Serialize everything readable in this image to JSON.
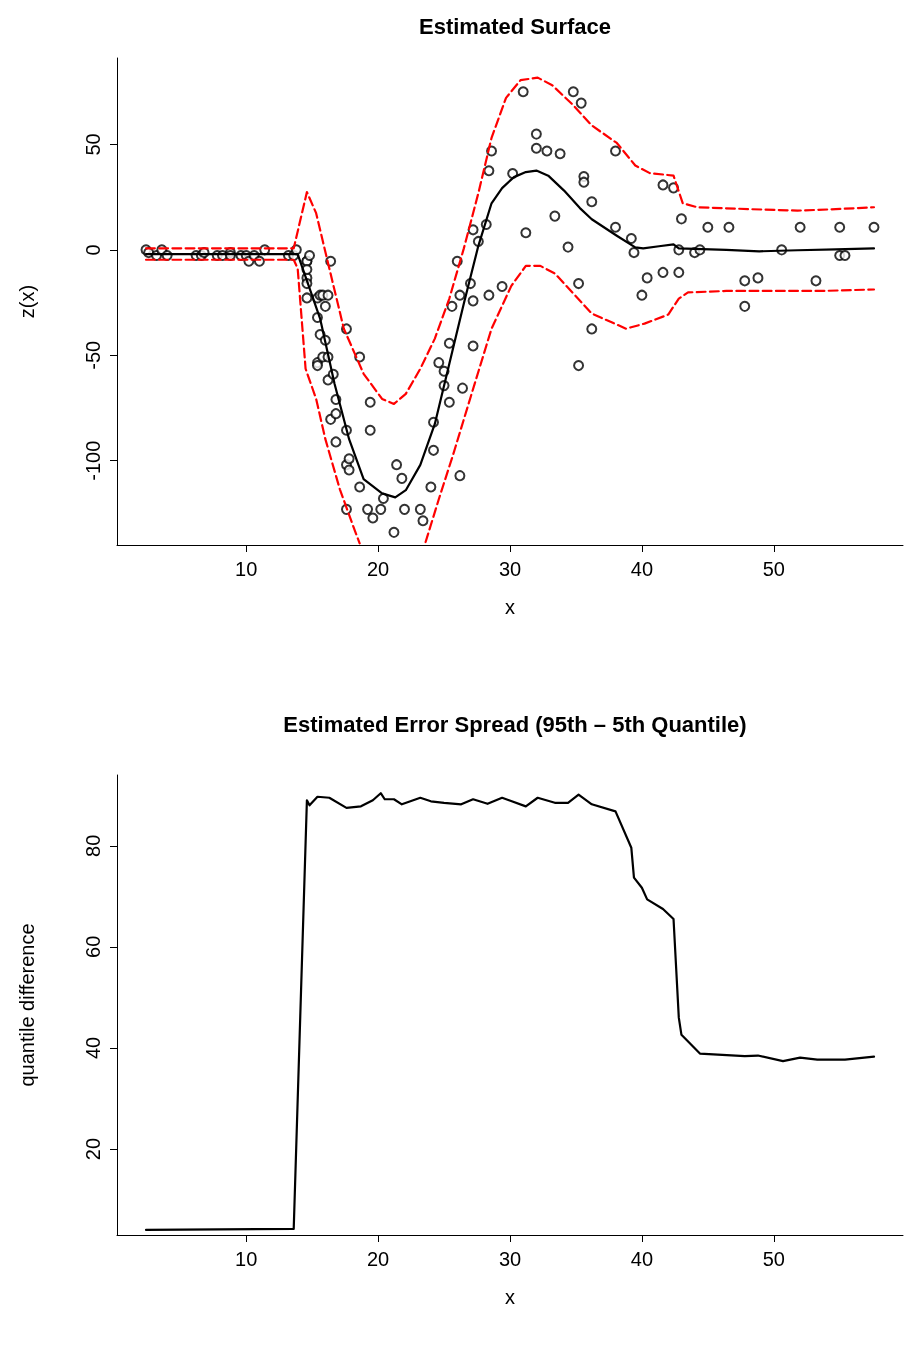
{
  "chart_data": [
    {
      "type": "scatter",
      "title": "Estimated Surface",
      "xlabel": "x",
      "ylabel": "z(x)",
      "xlim": [
        0.2,
        59.8
      ],
      "xticks": [
        10,
        20,
        30,
        40,
        50
      ],
      "ylim": [
        -140,
        91
      ],
      "yticks": [
        -100,
        -50,
        0,
        50
      ],
      "series": [
        {
          "color": "#000000",
          "marker": "circle",
          "x": [
            2.4,
            2.6,
            3.2,
            3.6,
            4.0,
            6.2,
            6.6,
            6.8,
            7.8,
            8.2,
            8.8,
            8.8,
            9.6,
            10.0,
            10.2,
            10.6,
            11.0,
            11.4,
            13.2,
            13.6,
            13.8,
            14.6,
            14.6,
            14.6,
            14.6,
            14.6,
            14.6,
            14.8,
            15.4,
            15.4,
            15.4,
            15.4,
            15.6,
            15.6,
            15.8,
            15.8,
            16.0,
            16.0,
            16.2,
            16.2,
            16.2,
            16.4,
            16.4,
            16.6,
            16.8,
            16.8,
            16.8,
            17.6,
            17.6,
            17.6,
            17.6,
            17.8,
            17.8,
            18.6,
            18.6,
            19.2,
            19.4,
            19.4,
            19.6,
            20.2,
            20.4,
            21.2,
            21.4,
            21.8,
            22.0,
            23.2,
            23.4,
            24.0,
            24.2,
            24.2,
            24.6,
            25.0,
            25.0,
            25.4,
            25.4,
            25.6,
            26.0,
            26.2,
            26.2,
            26.4,
            27.0,
            27.2,
            27.2,
            27.2,
            27.6,
            28.2,
            28.4,
            28.4,
            28.6,
            29.4,
            30.2,
            31.0,
            31.2,
            32.0,
            32.0,
            32.8,
            33.4,
            33.8,
            34.4,
            34.8,
            35.2,
            35.2,
            35.4,
            35.6,
            35.6,
            36.2,
            36.2,
            38.0,
            38.0,
            39.2,
            39.4,
            40.0,
            40.4,
            41.6,
            41.6,
            42.4,
            42.8,
            42.8,
            43.0,
            44.0,
            44.4,
            45.0,
            46.6,
            47.8,
            47.8,
            48.8,
            50.6,
            52.0,
            53.2,
            55.0,
            55.0,
            55.4,
            57.6
          ],
          "values": [
            0.0,
            -1.3,
            -2.7,
            0.0,
            -2.7,
            -2.7,
            -2.7,
            -1.3,
            -2.7,
            -2.7,
            -1.3,
            -2.7,
            -2.7,
            -2.7,
            -5.4,
            -2.7,
            -5.4,
            0.0,
            -2.7,
            -2.7,
            0.0,
            -13.3,
            -5.4,
            -5.4,
            -9.3,
            -16.0,
            -22.8,
            -2.7,
            -22.8,
            -32.1,
            -53.5,
            -54.9,
            -40.2,
            -21.5,
            -21.5,
            -50.8,
            -42.9,
            -26.8,
            -21.5,
            -50.8,
            -61.7,
            -5.4,
            -80.4,
            -59.0,
            -71.0,
            -91.1,
            -77.7,
            -37.5,
            -85.6,
            -123.1,
            -101.9,
            -99.1,
            -104.4,
            -112.5,
            -50.8,
            -123.1,
            -85.6,
            -72.3,
            -127.2,
            -123.1,
            -117.9,
            -134.0,
            -101.9,
            -108.4,
            -123.1,
            -123.1,
            -128.5,
            -112.5,
            -95.1,
            -81.8,
            -53.5,
            -64.4,
            -57.6,
            -72.3,
            -44.3,
            -26.8,
            -5.4,
            -107.1,
            -21.5,
            -65.6,
            -16.0,
            -45.6,
            -24.2,
            9.5,
            4.0,
            12.0,
            -21.5,
            37.5,
            46.9,
            -17.4,
            36.2,
            75.0,
            8.1,
            54.9,
            48.2,
            46.9,
            16.0,
            45.6,
            1.3,
            75.0,
            -16.0,
            -54.9,
            69.6,
            34.8,
            32.1,
            -37.5,
            22.8,
            46.9,
            10.7,
            5.4,
            -1.3,
            -21.5,
            -13.3,
            30.8,
            -10.7,
            29.4,
            0.0,
            -10.7,
            14.7,
            -1.3,
            0.0,
            10.7,
            10.7,
            -26.8,
            -14.7,
            -13.3,
            0.0,
            10.7,
            -14.7,
            -2.7,
            10.7,
            -2.7,
            10.7
          ]
        },
        {
          "type": "line",
          "color": "#000000",
          "marker": "none",
          "line_style": "solid",
          "x": [
            2.4,
            13.9,
            15.6,
            16.7,
            17.8,
            18.9,
            20.3,
            21.3,
            22.1,
            23.2,
            24.3,
            25.4,
            26.5,
            27.6,
            28.6,
            29.4,
            30.3,
            31.2,
            32.0,
            32.9,
            34.1,
            35.3,
            36.2,
            38.1,
            39.5,
            40.1,
            41.3,
            42.4,
            42.8,
            46.4,
            48.9,
            51.8,
            54.7,
            57.6
          ],
          "values": [
            -2,
            -2,
            -32.6,
            -63.6,
            -89.8,
            -108.8,
            -115.5,
            -117.4,
            -114,
            -102,
            -82.6,
            -54,
            -25.5,
            1.9,
            22.1,
            29.3,
            34.5,
            36.9,
            37.6,
            35.2,
            28.1,
            19.8,
            14.5,
            6.7,
            1.2,
            0.7,
            1.7,
            2.6,
            0.7,
            0,
            -0.7,
            -0.2,
            0.2,
            0.7
          ]
        },
        {
          "type": "line",
          "color": "#ff0000",
          "marker": "none",
          "line_style": "dashed",
          "x": [
            2.4,
            13.6,
            14.0,
            14.6,
            15.3,
            16.3,
            17.4,
            18.9,
            20.3,
            21.2,
            22.1,
            23.2,
            24.3,
            25.4,
            26.5,
            27.6,
            28.6,
            29.7,
            30.8,
            32.1,
            33.2,
            34.8,
            36.2,
            38.1,
            39.5,
            40.6,
            42.4,
            43.1,
            44.2,
            48.2,
            51.8,
            54.7,
            57.6
          ],
          "values": [
            0.7,
            0.7,
            11.4,
            27.4,
            17.4,
            -8.8,
            -37.4,
            -58.8,
            -70.7,
            -73.1,
            -68.3,
            -56.4,
            -42.1,
            -23.1,
            0.7,
            26.9,
            53.1,
            72.1,
            80.5,
            81.7,
            78.1,
            68.6,
            59.0,
            50.7,
            40.0,
            36.4,
            35.2,
            22.1,
            20.2,
            19.3,
            18.6,
            19.3,
            20.2
          ]
        },
        {
          "type": "line",
          "color": "#ff0000",
          "marker": "none",
          "line_style": "dashed",
          "x": [
            2.4,
            13.6,
            13.9,
            14.5,
            15.3,
            16.0,
            17.1,
            18.2,
            18.6,
            21.0,
            23.6,
            24.6,
            25.7,
            27.2,
            28.6,
            30.1,
            31.2,
            32.3,
            33.4,
            34.8,
            36.2,
            38.8,
            40.2,
            42.0,
            42.8,
            43.5,
            46.4,
            50.0,
            53.6,
            57.6
          ],
          "values": [
            -4.7,
            -4.7,
            -8.8,
            -56.4,
            -70.7,
            -89.8,
            -113.6,
            -132.6,
            -139.2,
            null,
            -138.6,
            -118.3,
            -96.9,
            -66,
            -37.4,
            -17.1,
            -7.6,
            -7.6,
            -11.2,
            -20.7,
            -30.2,
            -37.4,
            -35,
            -30.7,
            -23.1,
            -20.2,
            -19.5,
            -19.5,
            -19.5,
            -18.8
          ]
        }
      ]
    },
    {
      "type": "line",
      "title": "Estimated Error Spread (95th – 5th Quantile)",
      "xlabel": "x",
      "ylabel": "quantile difference",
      "xlim": [
        0.2,
        59.8
      ],
      "xticks": [
        10,
        20,
        30,
        40,
        50
      ],
      "ylim": [
        3,
        94
      ],
      "yticks": [
        20,
        40,
        60,
        80
      ],
      "series": [
        {
          "color": "#000000",
          "marker": "none",
          "line_style": "solid",
          "x": [
            2.4,
            13.6,
            14.6,
            14.8,
            15.4,
            16.3,
            17.6,
            18.7,
            19.6,
            20.2,
            20.5,
            21.2,
            21.8,
            23.2,
            24.0,
            25.0,
            26.3,
            27.2,
            28.3,
            29.4,
            31.2,
            32.1,
            33.4,
            34.4,
            35.2,
            36.2,
            38.0,
            39.2,
            39.4,
            40.0,
            40.4,
            41.6,
            42.4,
            42.8,
            43.0,
            44.4,
            47.8,
            48.8,
            50.7,
            52.0,
            53.3,
            55.4,
            57.6
          ],
          "values": [
            4.0,
            4.2,
            89.0,
            88.0,
            89.7,
            89.5,
            87.5,
            87.8,
            89.0,
            90.4,
            89.2,
            89.2,
            88.2,
            89.5,
            88.8,
            88.5,
            88.2,
            89.2,
            88.3,
            89.5,
            87.8,
            89.5,
            88.5,
            88.5,
            90.1,
            88.2,
            86.8,
            79.6,
            73.7,
            71.7,
            69.4,
            67.5,
            65.5,
            46.0,
            42.6,
            38.9,
            38.4,
            38.5,
            37.4,
            38.1,
            37.7,
            37.7,
            38.3
          ]
        }
      ]
    }
  ]
}
